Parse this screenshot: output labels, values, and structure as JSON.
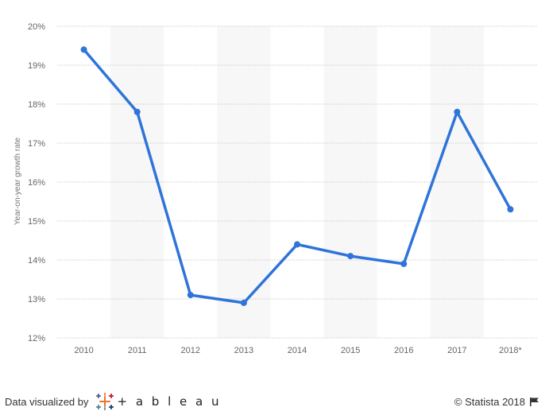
{
  "chart_data": {
    "type": "line",
    "categories": [
      "2010",
      "2011",
      "2012",
      "2013",
      "2014",
      "2015",
      "2016",
      "2017",
      "2018*"
    ],
    "series": [
      {
        "values": [
          19.4,
          17.8,
          13.1,
          12.9,
          14.4,
          14.1,
          13.9,
          17.8,
          15.3
        ]
      }
    ],
    "ylabel": "Year-on-year growth rate",
    "ylim": [
      12,
      20
    ],
    "yticks": [
      "12%",
      "13%",
      "14%",
      "15%",
      "16%",
      "17%",
      "18%",
      "19%",
      "20%"
    ],
    "grid": true,
    "colors": {
      "line": "#2e74d9",
      "band": "#f7f7f7",
      "grid": "#cccccc",
      "tick_text": "#666666"
    }
  },
  "footer": {
    "left_text": "Data visualized by",
    "tableau_word": "+ a b l e a u",
    "right_text": "© Statista 2018",
    "flag_icon": "flag-icon"
  }
}
